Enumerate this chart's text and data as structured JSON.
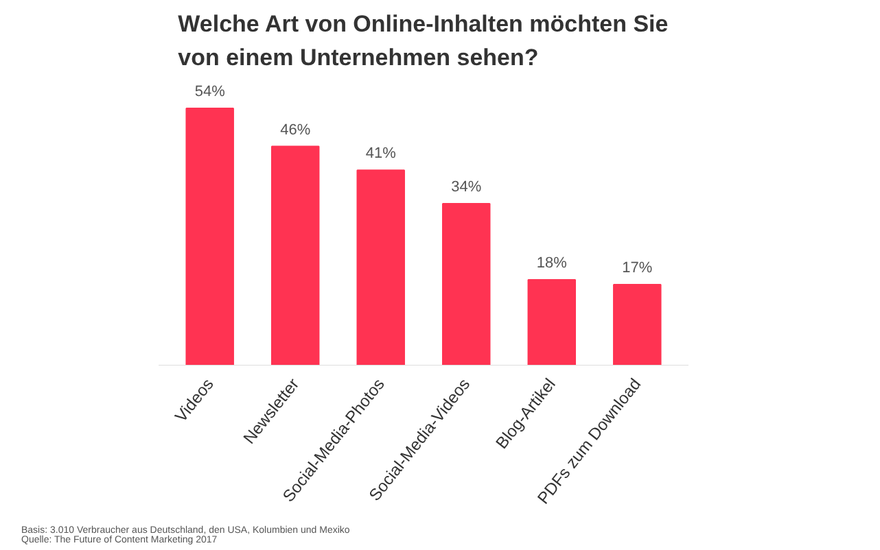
{
  "chart_data": {
    "type": "bar",
    "title": "Welche Art von Online-Inhalten möchten Sie\nvon einem Unternehmen sehen?",
    "categories": [
      "Videos",
      "Newsletter",
      "Social-Media-Photos",
      "Social-Media-Videos",
      "Blog-Artikel",
      "PDFs zum Download"
    ],
    "values": [
      54,
      46,
      41,
      34,
      18,
      17
    ],
    "value_labels": [
      "54%",
      "46%",
      "41%",
      "34%",
      "18%",
      "17%"
    ],
    "color": "#ff3352",
    "grid": false,
    "annotations": [
      "Basis: 3.010 Verbraucher aus Deutschland, den USA, Kolumbien und Mexiko",
      "Quelle: The Future of Content Marketing 2017"
    ]
  }
}
